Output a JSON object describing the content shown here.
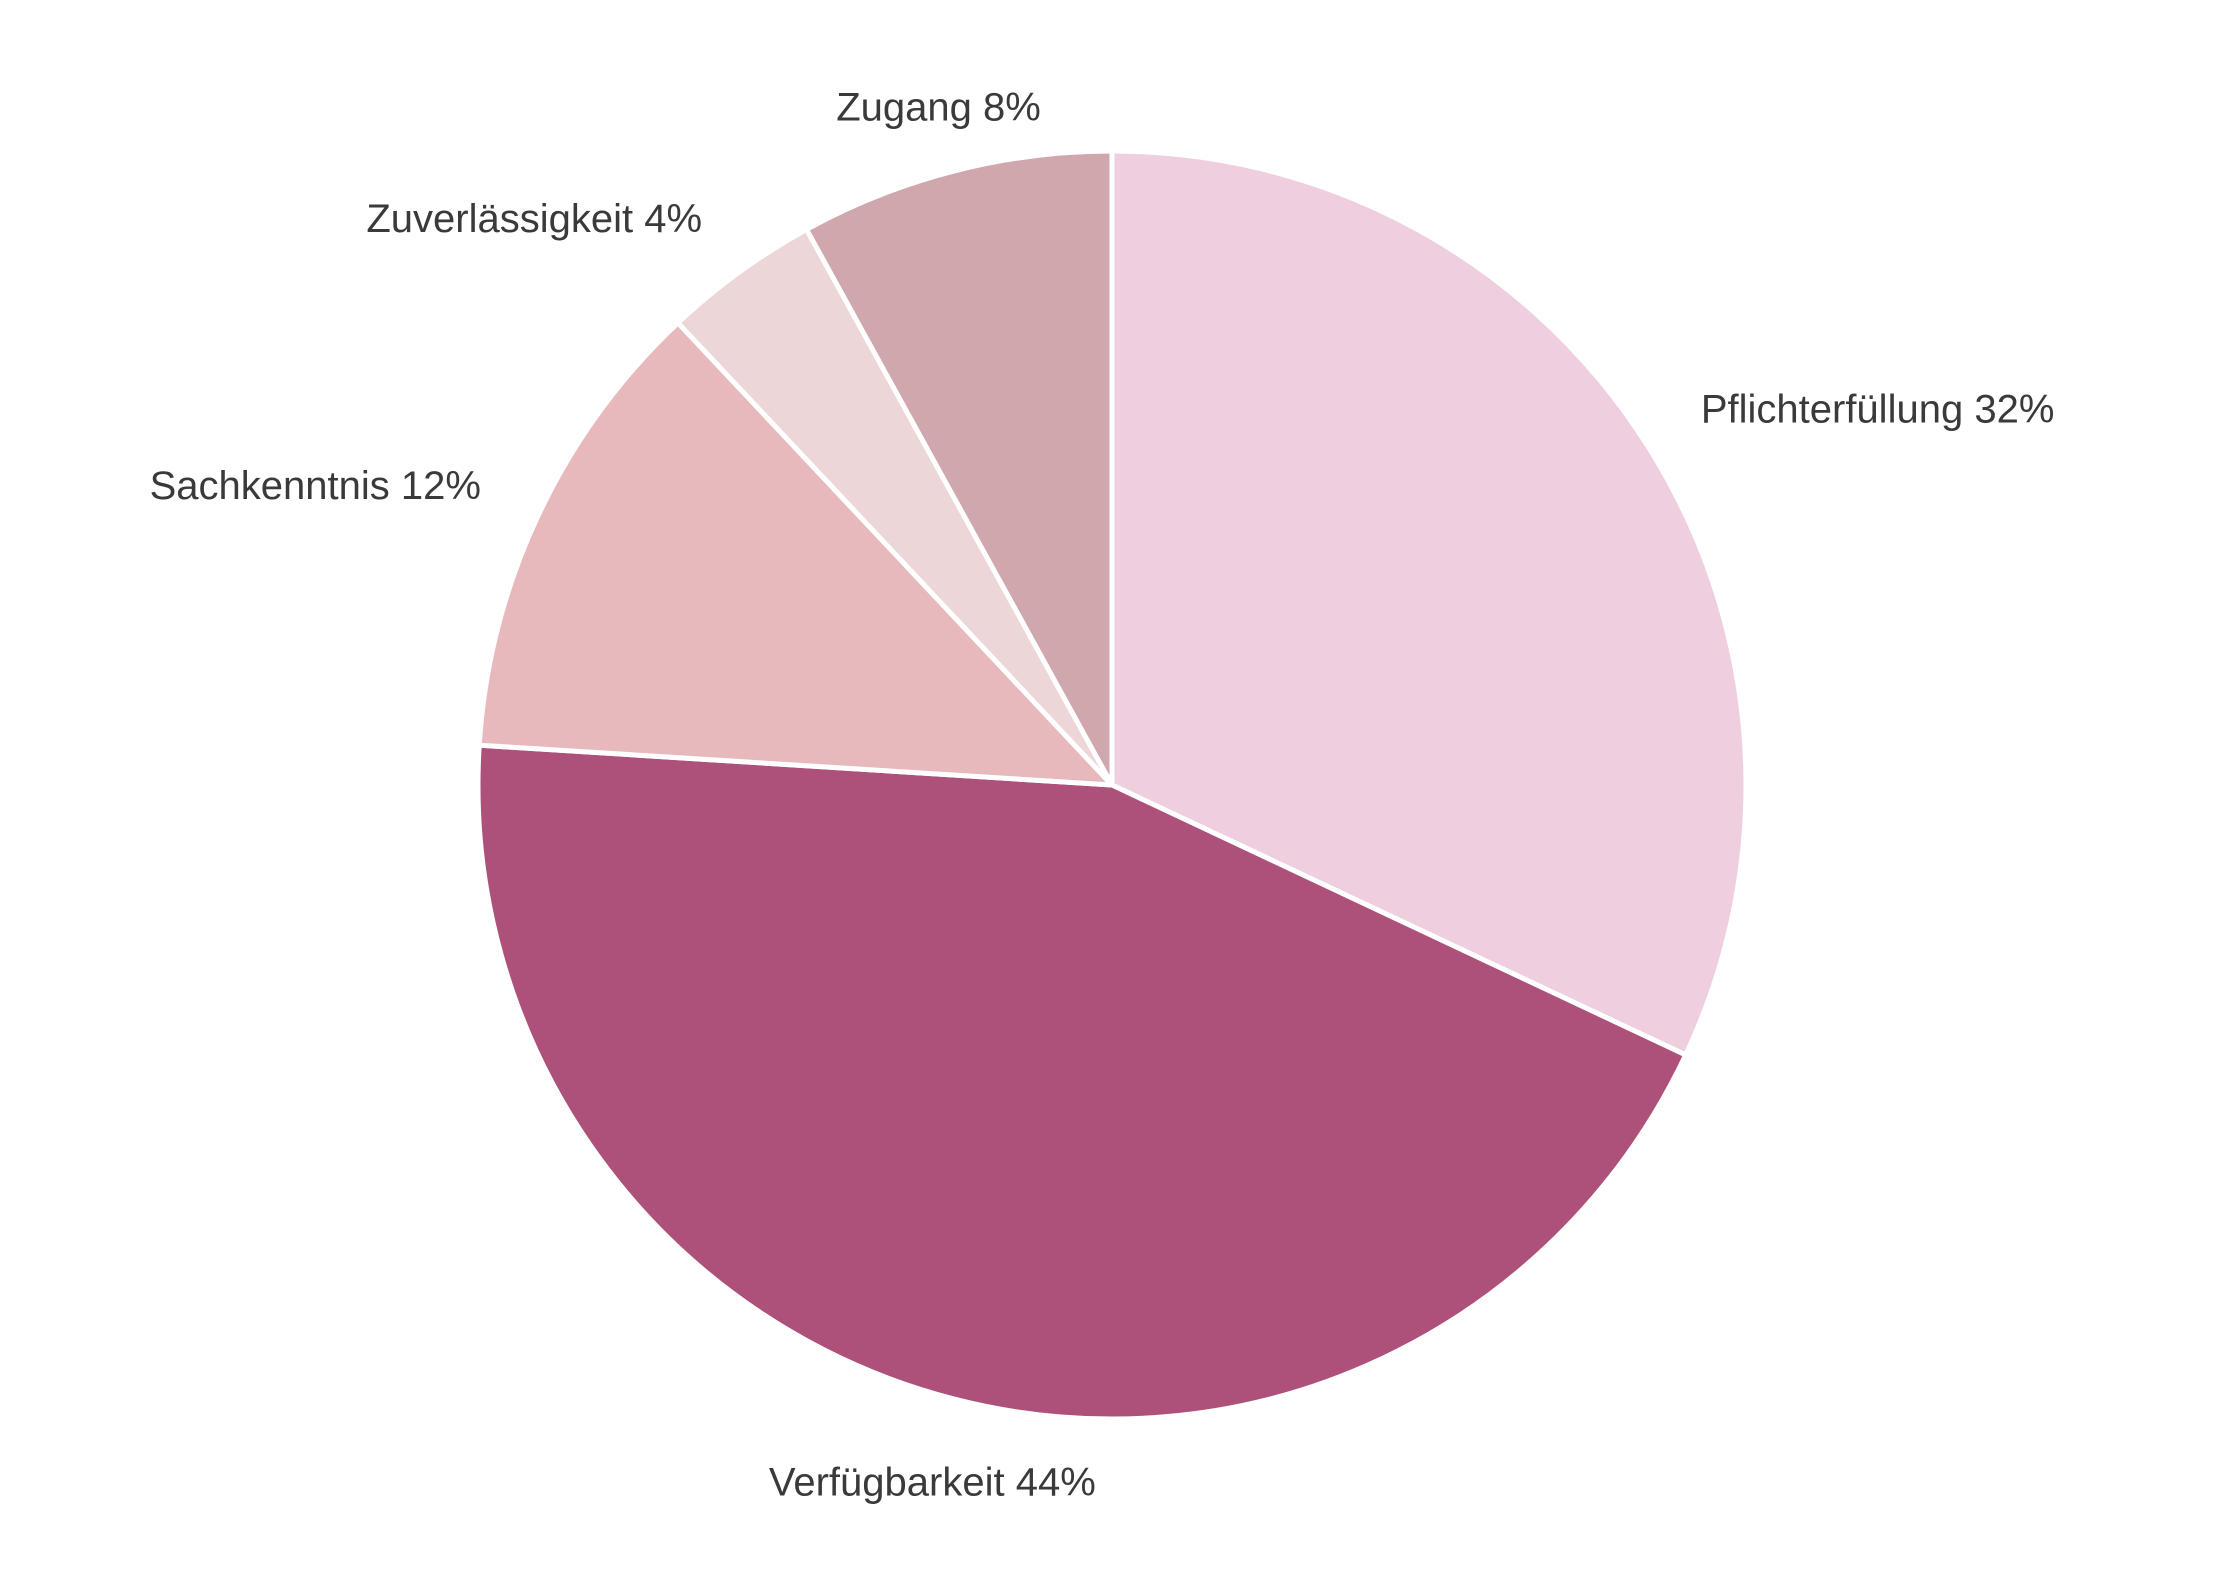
{
  "chart_data": {
    "type": "pie",
    "categories": [
      "Pflichterfüllung",
      "Verfügbarkeit",
      "Sachkenntnis",
      "Zuverlässigkeit",
      "Zugang"
    ],
    "values": [
      32,
      44,
      12,
      4,
      8
    ],
    "value_labels": [
      "32%",
      "44%",
      "12%",
      "4%",
      "8%"
    ],
    "colors": [
      "#efcfdf",
      "#ad517a",
      "#e8b9bc",
      "#edd6d7",
      "#d1a7ae"
    ]
  }
}
